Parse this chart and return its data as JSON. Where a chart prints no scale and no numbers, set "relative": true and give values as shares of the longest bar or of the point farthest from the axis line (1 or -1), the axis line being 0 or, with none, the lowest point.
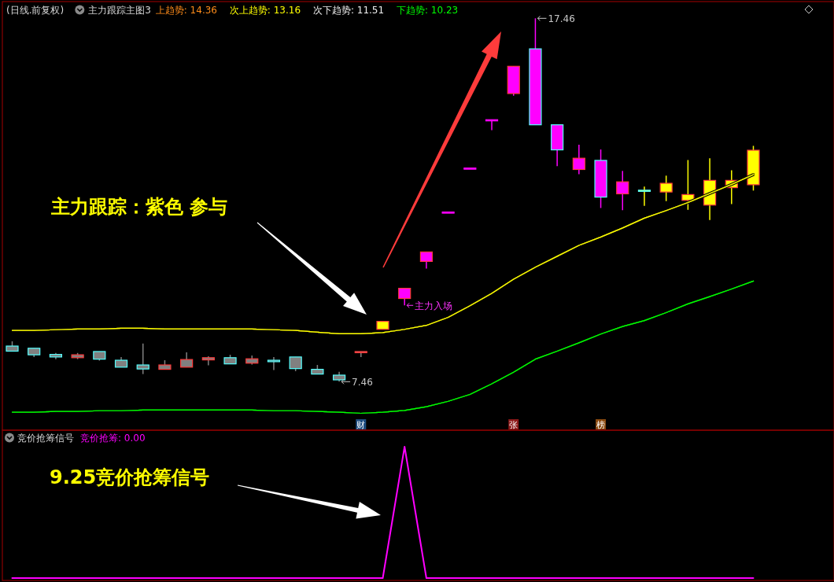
{
  "chart_data": [
    {
      "type": "candlestick",
      "title": "(日线.前复权)",
      "subtitle": "主力跟踪主图3",
      "categories": [
        null,
        null,
        null,
        null,
        null,
        null,
        null,
        null,
        null,
        null,
        null,
        null,
        null,
        null,
        null,
        null,
        null,
        null,
        null,
        null,
        null,
        null,
        null,
        null,
        null,
        null,
        null,
        null,
        null,
        null,
        null,
        null,
        null,
        null,
        null
      ],
      "ohlc": [
        [
          8.44,
          8.57,
          8.3,
          8.3
        ],
        [
          8.38,
          8.38,
          8.14,
          8.2
        ],
        [
          8.21,
          8.25,
          8.08,
          8.14
        ],
        [
          8.12,
          8.25,
          8.08,
          8.2
        ],
        [
          8.29,
          8.29,
          8.04,
          8.08
        ],
        [
          8.05,
          8.14,
          7.86,
          7.86
        ],
        [
          7.92,
          8.51,
          7.67,
          7.81
        ],
        [
          7.8,
          8.05,
          7.8,
          7.92
        ],
        [
          7.86,
          8.27,
          7.86,
          8.07
        ],
        [
          8.06,
          8.16,
          7.91,
          8.12
        ],
        [
          8.12,
          8.2,
          7.95,
          7.95
        ],
        [
          7.97,
          8.18,
          7.93,
          8.09
        ],
        [
          8.05,
          8.14,
          7.78,
          8.01
        ],
        [
          8.14,
          8.14,
          7.75,
          7.82
        ],
        [
          7.8,
          7.92,
          7.67,
          7.67
        ],
        [
          7.64,
          7.73,
          7.46,
          7.51
        ],
        [
          8.27,
          8.29,
          8.14,
          8.29
        ],
        [
          8.9,
          9.12,
          8.9,
          9.12
        ],
        [
          9.75,
          10.03,
          9.56,
          10.03
        ],
        [
          10.77,
          11.03,
          10.57,
          11.03
        ],
        [
          12.13,
          12.13,
          12.13,
          12.13
        ],
        [
          13.34,
          13.34,
          13.34,
          13.34
        ],
        [
          14.67,
          14.67,
          14.38,
          14.67
        ],
        [
          15.39,
          16.14,
          15.33,
          16.14
        ],
        [
          16.62,
          17.46,
          14.53,
          14.53
        ],
        [
          14.53,
          14.53,
          13.39,
          13.84
        ],
        [
          13.3,
          13.98,
          13.17,
          13.61
        ],
        [
          13.55,
          13.85,
          12.24,
          12.54
        ],
        [
          12.63,
          13.26,
          12.18,
          12.96
        ],
        [
          12.73,
          12.83,
          12.3,
          12.71
        ],
        [
          12.68,
          13.13,
          12.43,
          12.92
        ],
        [
          12.45,
          13.56,
          12.19,
          12.61
        ],
        [
          12.32,
          13.61,
          11.91,
          13.0
        ],
        [
          12.8,
          13.28,
          12.35,
          13.0
        ],
        [
          12.88,
          13.95,
          12.72,
          13.83
        ]
      ],
      "colors": [
        "#808080",
        "#808080",
        "#808080",
        "#808080",
        "#808080",
        "#808080",
        "#808080",
        "#808080",
        "#808080",
        "#808080",
        "#808080",
        "#808080",
        "#808080",
        "#808080",
        "#808080",
        "#808080",
        "#808080",
        "#ffff00",
        "#ff00ff",
        "#ff00ff",
        "#ff00ff",
        "#ff00ff",
        "#ff00ff",
        "#ff00ff",
        "#ff00ff",
        "#ff00ff",
        "#ff00ff",
        "#ff00ff",
        "#ff00ff",
        "#ffff00",
        "#ffff00",
        "#ffff00",
        "#ffff00",
        "#ffff00",
        "#ffff00"
      ],
      "series": [
        {
          "name": "次上趋势: 13.16",
          "type": "line",
          "color": "#ffff00",
          "values": [
            8.87,
            8.87,
            8.89,
            8.91,
            8.91,
            8.93,
            8.93,
            8.91,
            8.91,
            8.91,
            8.91,
            8.91,
            8.89,
            8.87,
            8.82,
            8.78,
            8.78,
            8.81,
            8.9,
            9.01,
            9.23,
            9.55,
            9.89,
            10.28,
            10.61,
            10.91,
            11.21,
            11.44,
            11.69,
            11.96,
            12.17,
            12.39,
            12.64,
            12.89,
            13.16
          ]
        },
        {
          "name": "下趋势: 10.23",
          "type": "line",
          "color": "#00ff00",
          "values": [
            6.62,
            6.62,
            6.64,
            6.64,
            6.66,
            6.66,
            6.68,
            6.68,
            6.68,
            6.68,
            6.68,
            6.68,
            6.66,
            6.66,
            6.64,
            6.62,
            6.59,
            6.62,
            6.67,
            6.77,
            6.92,
            7.11,
            7.4,
            7.72,
            8.08,
            8.3,
            8.53,
            8.77,
            8.98,
            9.14,
            9.36,
            9.6,
            9.8,
            10.01,
            10.23
          ]
        }
      ],
      "annotations": [
        "上趋势: 14.36",
        "次下趋势: 11.51",
        "主力跟踪：紫色 参与",
        "主力入场",
        "17.46",
        "7.46",
        "财",
        "张",
        "榜"
      ]
    },
    {
      "type": "line",
      "title": "竞价抢筹信号",
      "relative": true,
      "categories": [
        null,
        null,
        null,
        null,
        null,
        null,
        null,
        null,
        null,
        null,
        null,
        null,
        null,
        null,
        null,
        null,
        null,
        null,
        null,
        null,
        null,
        null,
        null,
        null,
        null,
        null,
        null,
        null,
        null,
        null,
        null,
        null,
        null,
        null,
        null
      ],
      "series": [
        {
          "name": "竞价抢筹: 0.00",
          "color": "#ff00ff",
          "values": [
            0,
            0,
            0,
            0,
            0,
            0,
            0,
            0,
            0,
            0,
            0,
            0,
            0,
            0,
            0,
            0,
            0,
            0,
            1,
            0,
            0,
            0,
            0,
            0,
            0,
            0,
            0,
            0,
            0,
            0,
            0,
            0,
            0,
            0,
            0
          ]
        }
      ],
      "annotations": [
        "9.25竞价抢筹信号"
      ]
    }
  ]
}
